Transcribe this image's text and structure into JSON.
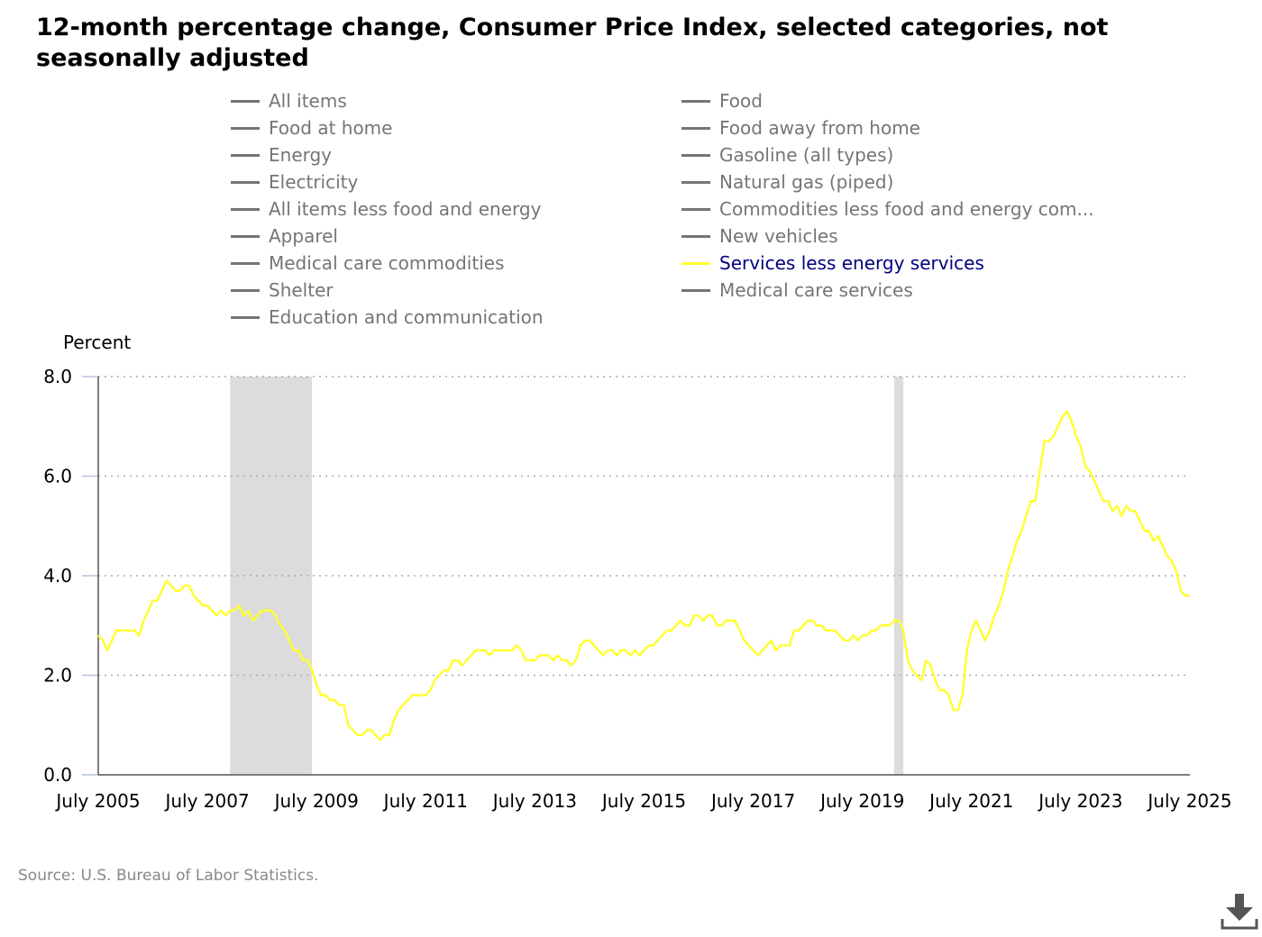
{
  "title": "12-month percentage change, Consumer Price Index, selected categories, not seasonally adjusted",
  "legend": [
    {
      "label": "All items",
      "active": false
    },
    {
      "label": "Food at home",
      "active": false
    },
    {
      "label": "Energy",
      "active": false
    },
    {
      "label": "Electricity",
      "active": false
    },
    {
      "label": "All items less food and energy",
      "active": false
    },
    {
      "label": "Apparel",
      "active": false
    },
    {
      "label": "Medical care commodities",
      "active": false
    },
    {
      "label": "Shelter",
      "active": false
    },
    {
      "label": "Education and communication",
      "active": false
    },
    {
      "label": "Food",
      "active": false
    },
    {
      "label": "Food away from home",
      "active": false
    },
    {
      "label": "Gasoline (all types)",
      "active": false
    },
    {
      "label": "Natural gas (piped)",
      "active": false
    },
    {
      "label": "Commodities less food and energy com...",
      "active": false
    },
    {
      "label": "New vehicles",
      "active": false
    },
    {
      "label": "Services less energy services",
      "active": true
    },
    {
      "label": "Medical care services",
      "active": false
    }
  ],
  "source": "Source: U.S. Bureau of Labor Statistics.",
  "icons": {
    "download": "download-icon"
  },
  "colors": {
    "series": "#ffff33",
    "inactive": "#757575",
    "active_text": "#000080",
    "recession": "#dcdcdc",
    "grid": "#aaaaaa"
  },
  "chart_data": {
    "type": "line",
    "ylabel": "Percent",
    "xlabel": "",
    "ylim": [
      0,
      8
    ],
    "yticks": [
      "0.0",
      "2.0",
      "4.0",
      "6.0",
      "8.0"
    ],
    "xlim": [
      "2005-07",
      "2025-07"
    ],
    "xticks": [
      "July 2005",
      "July 2007",
      "July 2009",
      "July 2011",
      "July 2013",
      "July 2015",
      "July 2017",
      "July 2019",
      "July 2021",
      "July 2023",
      "July 2025"
    ],
    "grid": true,
    "recessions": [
      [
        "2007-12",
        "2009-06"
      ],
      [
        "2020-02",
        "2020-04"
      ]
    ],
    "series": [
      {
        "name": "Services less energy services",
        "points": [
          [
            "2005-07",
            2.8
          ],
          [
            "2005-08",
            2.7
          ],
          [
            "2005-09",
            2.5
          ],
          [
            "2005-10",
            2.7
          ],
          [
            "2005-11",
            2.9
          ],
          [
            "2005-12",
            2.9
          ],
          [
            "2006-01",
            2.9
          ],
          [
            "2006-02",
            2.9
          ],
          [
            "2006-03",
            2.9
          ],
          [
            "2006-04",
            2.8
          ],
          [
            "2006-05",
            3.1
          ],
          [
            "2006-06",
            3.3
          ],
          [
            "2006-07",
            3.5
          ],
          [
            "2006-08",
            3.5
          ],
          [
            "2006-09",
            3.7
          ],
          [
            "2006-10",
            3.9
          ],
          [
            "2006-11",
            3.8
          ],
          [
            "2006-12",
            3.7
          ],
          [
            "2007-01",
            3.7
          ],
          [
            "2007-02",
            3.8
          ],
          [
            "2007-03",
            3.8
          ],
          [
            "2007-04",
            3.6
          ],
          [
            "2007-05",
            3.5
          ],
          [
            "2007-06",
            3.4
          ],
          [
            "2007-07",
            3.4
          ],
          [
            "2007-08",
            3.3
          ],
          [
            "2007-09",
            3.2
          ],
          [
            "2007-10",
            3.3
          ],
          [
            "2007-11",
            3.2
          ],
          [
            "2007-12",
            3.3
          ],
          [
            "2008-01",
            3.3
          ],
          [
            "2008-02",
            3.4
          ],
          [
            "2008-03",
            3.2
          ],
          [
            "2008-04",
            3.3
          ],
          [
            "2008-05",
            3.1
          ],
          [
            "2008-06",
            3.2
          ],
          [
            "2008-07",
            3.3
          ],
          [
            "2008-08",
            3.3
          ],
          [
            "2008-09",
            3.3
          ],
          [
            "2008-10",
            3.2
          ],
          [
            "2008-11",
            3.0
          ],
          [
            "2008-12",
            2.9
          ],
          [
            "2009-01",
            2.7
          ],
          [
            "2009-02",
            2.5
          ],
          [
            "2009-03",
            2.5
          ],
          [
            "2009-04",
            2.3
          ],
          [
            "2009-05",
            2.3
          ],
          [
            "2009-06",
            2.1
          ],
          [
            "2009-07",
            1.8
          ],
          [
            "2009-08",
            1.6
          ],
          [
            "2009-09",
            1.6
          ],
          [
            "2009-10",
            1.5
          ],
          [
            "2009-11",
            1.5
          ],
          [
            "2009-12",
            1.4
          ],
          [
            "2010-01",
            1.4
          ],
          [
            "2010-02",
            1.0
          ],
          [
            "2010-03",
            0.9
          ],
          [
            "2010-04",
            0.8
          ],
          [
            "2010-05",
            0.8
          ],
          [
            "2010-06",
            0.9
          ],
          [
            "2010-07",
            0.9
          ],
          [
            "2010-08",
            0.8
          ],
          [
            "2010-09",
            0.7
          ],
          [
            "2010-10",
            0.8
          ],
          [
            "2010-11",
            0.8
          ],
          [
            "2010-12",
            1.1
          ],
          [
            "2011-01",
            1.3
          ],
          [
            "2011-02",
            1.4
          ],
          [
            "2011-03",
            1.5
          ],
          [
            "2011-04",
            1.6
          ],
          [
            "2011-05",
            1.6
          ],
          [
            "2011-06",
            1.6
          ],
          [
            "2011-07",
            1.6
          ],
          [
            "2011-08",
            1.7
          ],
          [
            "2011-09",
            1.9
          ],
          [
            "2011-10",
            2.0
          ],
          [
            "2011-11",
            2.1
          ],
          [
            "2011-12",
            2.1
          ],
          [
            "2012-01",
            2.3
          ],
          [
            "2012-02",
            2.3
          ],
          [
            "2012-03",
            2.2
          ],
          [
            "2012-04",
            2.3
          ],
          [
            "2012-05",
            2.4
          ],
          [
            "2012-06",
            2.5
          ],
          [
            "2012-07",
            2.5
          ],
          [
            "2012-08",
            2.5
          ],
          [
            "2012-09",
            2.4
          ],
          [
            "2012-10",
            2.5
          ],
          [
            "2012-11",
            2.5
          ],
          [
            "2012-12",
            2.5
          ],
          [
            "2013-01",
            2.5
          ],
          [
            "2013-02",
            2.5
          ],
          [
            "2013-03",
            2.6
          ],
          [
            "2013-04",
            2.5
          ],
          [
            "2013-05",
            2.3
          ],
          [
            "2013-06",
            2.3
          ],
          [
            "2013-07",
            2.3
          ],
          [
            "2013-08",
            2.4
          ],
          [
            "2013-09",
            2.4
          ],
          [
            "2013-10",
            2.4
          ],
          [
            "2013-11",
            2.3
          ],
          [
            "2013-12",
            2.4
          ],
          [
            "2014-01",
            2.3
          ],
          [
            "2014-02",
            2.3
          ],
          [
            "2014-03",
            2.2
          ],
          [
            "2014-04",
            2.3
          ],
          [
            "2014-05",
            2.6
          ],
          [
            "2014-06",
            2.7
          ],
          [
            "2014-07",
            2.7
          ],
          [
            "2014-08",
            2.6
          ],
          [
            "2014-09",
            2.5
          ],
          [
            "2014-10",
            2.4
          ],
          [
            "2014-11",
            2.5
          ],
          [
            "2014-12",
            2.5
          ],
          [
            "2015-01",
            2.4
          ],
          [
            "2015-02",
            2.5
          ],
          [
            "2015-03",
            2.5
          ],
          [
            "2015-04",
            2.4
          ],
          [
            "2015-05",
            2.5
          ],
          [
            "2015-06",
            2.4
          ],
          [
            "2015-07",
            2.5
          ],
          [
            "2015-08",
            2.6
          ],
          [
            "2015-09",
            2.6
          ],
          [
            "2015-10",
            2.7
          ],
          [
            "2015-11",
            2.8
          ],
          [
            "2015-12",
            2.9
          ],
          [
            "2016-01",
            2.9
          ],
          [
            "2016-02",
            3.0
          ],
          [
            "2016-03",
            3.1
          ],
          [
            "2016-04",
            3.0
          ],
          [
            "2016-05",
            3.0
          ],
          [
            "2016-06",
            3.2
          ],
          [
            "2016-07",
            3.2
          ],
          [
            "2016-08",
            3.1
          ],
          [
            "2016-09",
            3.2
          ],
          [
            "2016-10",
            3.2
          ],
          [
            "2016-11",
            3.0
          ],
          [
            "2016-12",
            3.0
          ],
          [
            "2017-01",
            3.1
          ],
          [
            "2017-02",
            3.1
          ],
          [
            "2017-03",
            3.1
          ],
          [
            "2017-04",
            2.9
          ],
          [
            "2017-05",
            2.7
          ],
          [
            "2017-06",
            2.6
          ],
          [
            "2017-07",
            2.5
          ],
          [
            "2017-08",
            2.4
          ],
          [
            "2017-09",
            2.5
          ],
          [
            "2017-10",
            2.6
          ],
          [
            "2017-11",
            2.7
          ],
          [
            "2017-12",
            2.5
          ],
          [
            "2018-01",
            2.6
          ],
          [
            "2018-02",
            2.6
          ],
          [
            "2018-03",
            2.6
          ],
          [
            "2018-04",
            2.9
          ],
          [
            "2018-05",
            2.9
          ],
          [
            "2018-06",
            3.0
          ],
          [
            "2018-07",
            3.1
          ],
          [
            "2018-08",
            3.1
          ],
          [
            "2018-09",
            3.0
          ],
          [
            "2018-10",
            3.0
          ],
          [
            "2018-11",
            2.9
          ],
          [
            "2018-12",
            2.9
          ],
          [
            "2019-01",
            2.9
          ],
          [
            "2019-02",
            2.8
          ],
          [
            "2019-03",
            2.7
          ],
          [
            "2019-04",
            2.7
          ],
          [
            "2019-05",
            2.8
          ],
          [
            "2019-06",
            2.7
          ],
          [
            "2019-07",
            2.8
          ],
          [
            "2019-08",
            2.8
          ],
          [
            "2019-09",
            2.9
          ],
          [
            "2019-10",
            2.9
          ],
          [
            "2019-11",
            3.0
          ],
          [
            "2019-12",
            3.0
          ],
          [
            "2020-01",
            3.0
          ],
          [
            "2020-02",
            3.1
          ],
          [
            "2020-03",
            3.1
          ],
          [
            "2020-04",
            2.9
          ],
          [
            "2020-05",
            2.3
          ],
          [
            "2020-06",
            2.1
          ],
          [
            "2020-07",
            2.0
          ],
          [
            "2020-08",
            1.9
          ],
          [
            "2020-09",
            2.3
          ],
          [
            "2020-10",
            2.2
          ],
          [
            "2020-11",
            1.9
          ],
          [
            "2020-12",
            1.7
          ],
          [
            "2021-01",
            1.7
          ],
          [
            "2021-02",
            1.6
          ],
          [
            "2021-03",
            1.3
          ],
          [
            "2021-04",
            1.3
          ],
          [
            "2021-05",
            1.6
          ],
          [
            "2021-06",
            2.5
          ],
          [
            "2021-07",
            2.9
          ],
          [
            "2021-08",
            3.1
          ],
          [
            "2021-09",
            2.9
          ],
          [
            "2021-10",
            2.7
          ],
          [
            "2021-11",
            2.9
          ],
          [
            "2021-12",
            3.2
          ],
          [
            "2022-01",
            3.4
          ],
          [
            "2022-02",
            3.7
          ],
          [
            "2022-03",
            4.1
          ],
          [
            "2022-04",
            4.4
          ],
          [
            "2022-05",
            4.7
          ],
          [
            "2022-06",
            4.9
          ],
          [
            "2022-07",
            5.2
          ],
          [
            "2022-08",
            5.5
          ],
          [
            "2022-09",
            5.5
          ],
          [
            "2022-10",
            6.1
          ],
          [
            "2022-11",
            6.7
          ],
          [
            "2022-12",
            6.7
          ],
          [
            "2023-01",
            6.8
          ],
          [
            "2023-02",
            7.0
          ],
          [
            "2023-03",
            7.2
          ],
          [
            "2023-04",
            7.3
          ],
          [
            "2023-05",
            7.1
          ],
          [
            "2023-06",
            6.8
          ],
          [
            "2023-07",
            6.6
          ],
          [
            "2023-08",
            6.2
          ],
          [
            "2023-09",
            6.1
          ],
          [
            "2023-10",
            5.9
          ],
          [
            "2023-11",
            5.7
          ],
          [
            "2023-12",
            5.5
          ],
          [
            "2024-01",
            5.5
          ],
          [
            "2024-02",
            5.3
          ],
          [
            "2024-03",
            5.4
          ],
          [
            "2024-04",
            5.2
          ],
          [
            "2024-05",
            5.4
          ],
          [
            "2024-06",
            5.3
          ],
          [
            "2024-07",
            5.3
          ],
          [
            "2024-08",
            5.1
          ],
          [
            "2024-09",
            4.9
          ],
          [
            "2024-10",
            4.9
          ],
          [
            "2024-11",
            4.7
          ],
          [
            "2024-12",
            4.8
          ],
          [
            "2025-01",
            4.6
          ],
          [
            "2025-02",
            4.4
          ],
          [
            "2025-03",
            4.3
          ],
          [
            "2025-04",
            4.1
          ],
          [
            "2025-05",
            3.7
          ],
          [
            "2025-06",
            3.6
          ],
          [
            "2025-07",
            3.6
          ]
        ]
      }
    ]
  }
}
